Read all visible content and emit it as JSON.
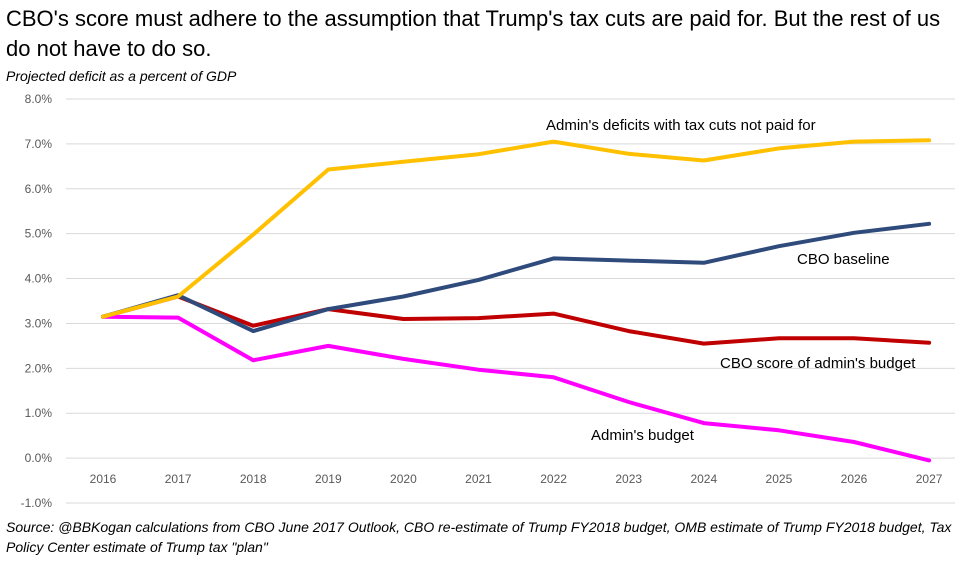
{
  "title": "CBO's score must adhere to the assumption that Trump's tax cuts are paid for. But the rest of us do not have to do so.",
  "subtitle": "Projected deficit as a percent of GDP",
  "source": "Source: @BBKogan calculations from CBO June 2017 Outlook, CBO re-estimate of Trump FY2018 budget, OMB estimate of Trump FY2018 budget, Tax Policy Center estimate of Trump tax \"plan\"",
  "chart_data": {
    "type": "line",
    "title": "CBO's score must adhere to the assumption that Trump's tax cuts are paid for. But the rest of us do not have to do so.",
    "ylabel": "Projected deficit as a percent of GDP",
    "xlabel": "",
    "x": [
      "2016",
      "2017",
      "2018",
      "2019",
      "2020",
      "2021",
      "2022",
      "2023",
      "2024",
      "2025",
      "2026",
      "2027"
    ],
    "ylim": [
      -1.0,
      8.0
    ],
    "yticks": [
      -1.0,
      0.0,
      1.0,
      2.0,
      3.0,
      4.0,
      5.0,
      6.0,
      7.0,
      8.0
    ],
    "ytick_labels": [
      "-1.0%",
      "0.0%",
      "1.0%",
      "2.0%",
      "3.0%",
      "4.0%",
      "5.0%",
      "6.0%",
      "7.0%",
      "8.0%"
    ],
    "grid": true,
    "legend": "inline labels",
    "series": [
      {
        "name": "Admin's deficits with tax cuts not paid for",
        "color": "#FFC000",
        "values": [
          3.15,
          3.6,
          4.98,
          6.43,
          6.6,
          6.77,
          7.05,
          6.78,
          6.63,
          6.9,
          7.05,
          7.08
        ]
      },
      {
        "name": "CBO baseline",
        "color": "#2F4B7C",
        "values": [
          3.15,
          3.63,
          2.83,
          3.32,
          3.6,
          3.97,
          4.45,
          4.4,
          4.35,
          4.72,
          5.02,
          5.22
        ]
      },
      {
        "name": "CBO score of admin's budget",
        "color": "#C00000",
        "values": [
          3.15,
          3.6,
          2.95,
          3.32,
          3.1,
          3.12,
          3.22,
          2.83,
          2.55,
          2.67,
          2.67,
          2.57
        ]
      },
      {
        "name": "Admin's budget",
        "color": "#FF00FF",
        "values": [
          3.15,
          3.13,
          2.18,
          2.5,
          2.21,
          1.97,
          1.8,
          1.25,
          0.78,
          0.62,
          0.36,
          -0.05
        ]
      }
    ]
  }
}
